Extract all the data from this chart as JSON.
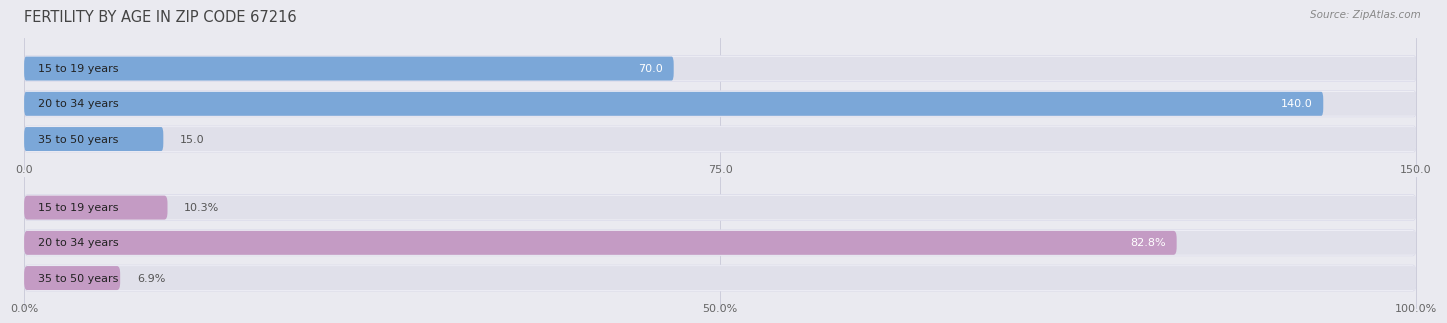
{
  "title": "FERTILITY BY AGE IN ZIP CODE 67216",
  "source": "Source: ZipAtlas.com",
  "top_bars": {
    "categories": [
      "15 to 19 years",
      "20 to 34 years",
      "35 to 50 years"
    ],
    "values": [
      70.0,
      140.0,
      15.0
    ],
    "xlim": [
      0,
      150
    ],
    "xticks": [
      0.0,
      75.0,
      150.0
    ],
    "xtick_labels": [
      "0.0",
      "75.0",
      "150.0"
    ],
    "bar_color": "#7ba7d8",
    "bar_color_full": "#5585c8",
    "label_inside_color": "#ffffff",
    "label_outside_color": "#555555"
  },
  "bottom_bars": {
    "categories": [
      "15 to 19 years",
      "20 to 34 years",
      "35 to 50 years"
    ],
    "values": [
      10.3,
      82.8,
      6.9
    ],
    "xlim": [
      0,
      100
    ],
    "xticks": [
      0.0,
      50.0,
      100.0
    ],
    "xtick_labels": [
      "0.0%",
      "50.0%",
      "100.0%"
    ],
    "bar_color": "#c49bc4",
    "bar_color_full": "#b07ab0",
    "label_inside_color": "#ffffff",
    "label_outside_color": "#555555"
  },
  "fig_bg_color": "#eaeaf0",
  "bar_row_bg_color": "#f5f5fa",
  "bar_bg_color": "#e0e0ea",
  "title_fontsize": 10.5,
  "label_fontsize": 8,
  "tick_fontsize": 8,
  "source_fontsize": 7.5
}
